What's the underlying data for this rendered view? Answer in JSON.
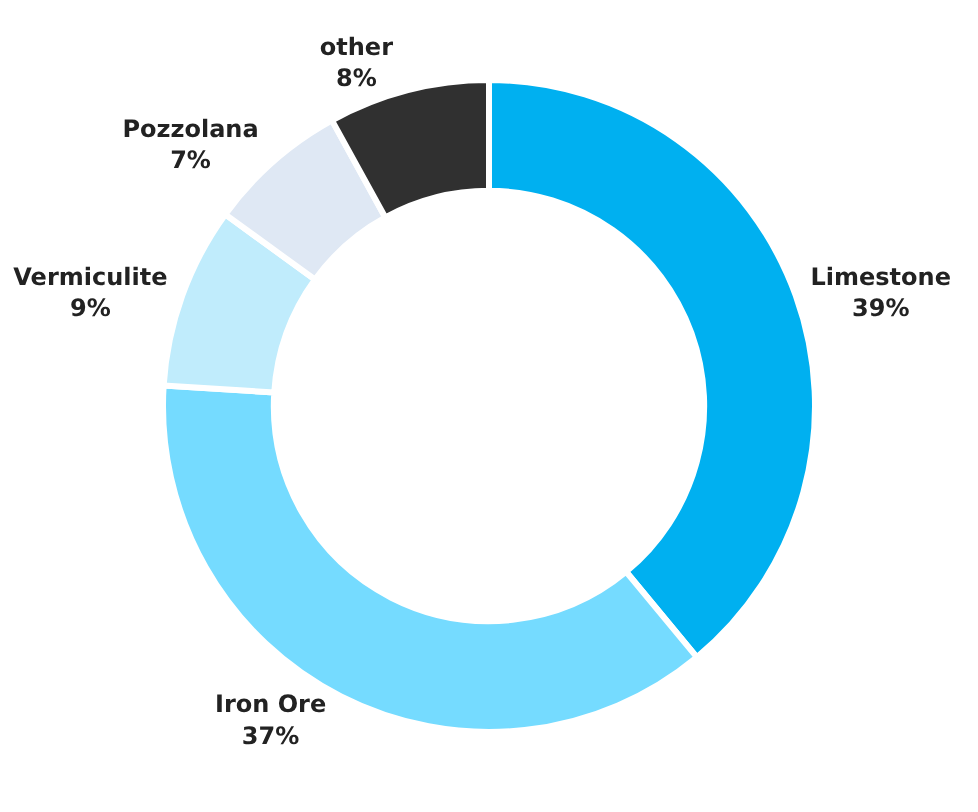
{
  "chart_data": {
    "type": "donut",
    "categories": [
      "Limestone",
      "Iron Ore",
      "Vermiculite",
      "Pozzolana",
      "other"
    ],
    "values": [
      39,
      37,
      9,
      7,
      8
    ],
    "value_labels": [
      "39%",
      "37%",
      "9%",
      "7%",
      "8%"
    ],
    "colors": [
      "#00b0f0",
      "#75dbff",
      "#c0ecfc",
      "#dfe8f4",
      "#303030"
    ],
    "legend": false
  }
}
